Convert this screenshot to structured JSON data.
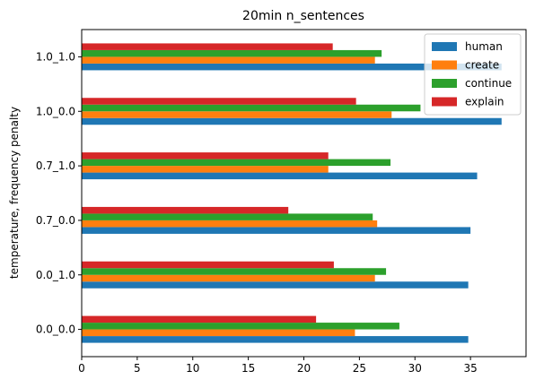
{
  "chart_data": {
    "type": "bar",
    "orientation": "horizontal",
    "title": "20min n_sentences",
    "xlabel": "",
    "ylabel": "temperature, frequency penalty",
    "categories": [
      "0.0_0.0",
      "0.0_1.0",
      "0.7_0.0",
      "0.7_1.0",
      "1.0_0.0",
      "1.0_1.0"
    ],
    "xlim": [
      0,
      40
    ],
    "xticks": [
      0,
      5,
      10,
      15,
      20,
      25,
      30,
      35
    ],
    "grid": false,
    "legend_position": "top-right",
    "series": [
      {
        "name": "human",
        "color": "#1f77b4",
        "values": [
          34.8,
          34.8,
          35.0,
          35.6,
          37.8,
          37.8
        ]
      },
      {
        "name": "create",
        "color": "#ff7f0e",
        "values": [
          24.6,
          26.4,
          26.6,
          22.2,
          27.9,
          26.4
        ]
      },
      {
        "name": "continue",
        "color": "#2ca02c",
        "values": [
          28.6,
          27.4,
          26.2,
          27.8,
          30.5,
          27.0
        ]
      },
      {
        "name": "explain",
        "color": "#d62728",
        "values": [
          21.1,
          22.7,
          18.6,
          22.2,
          24.7,
          22.6
        ]
      }
    ]
  }
}
